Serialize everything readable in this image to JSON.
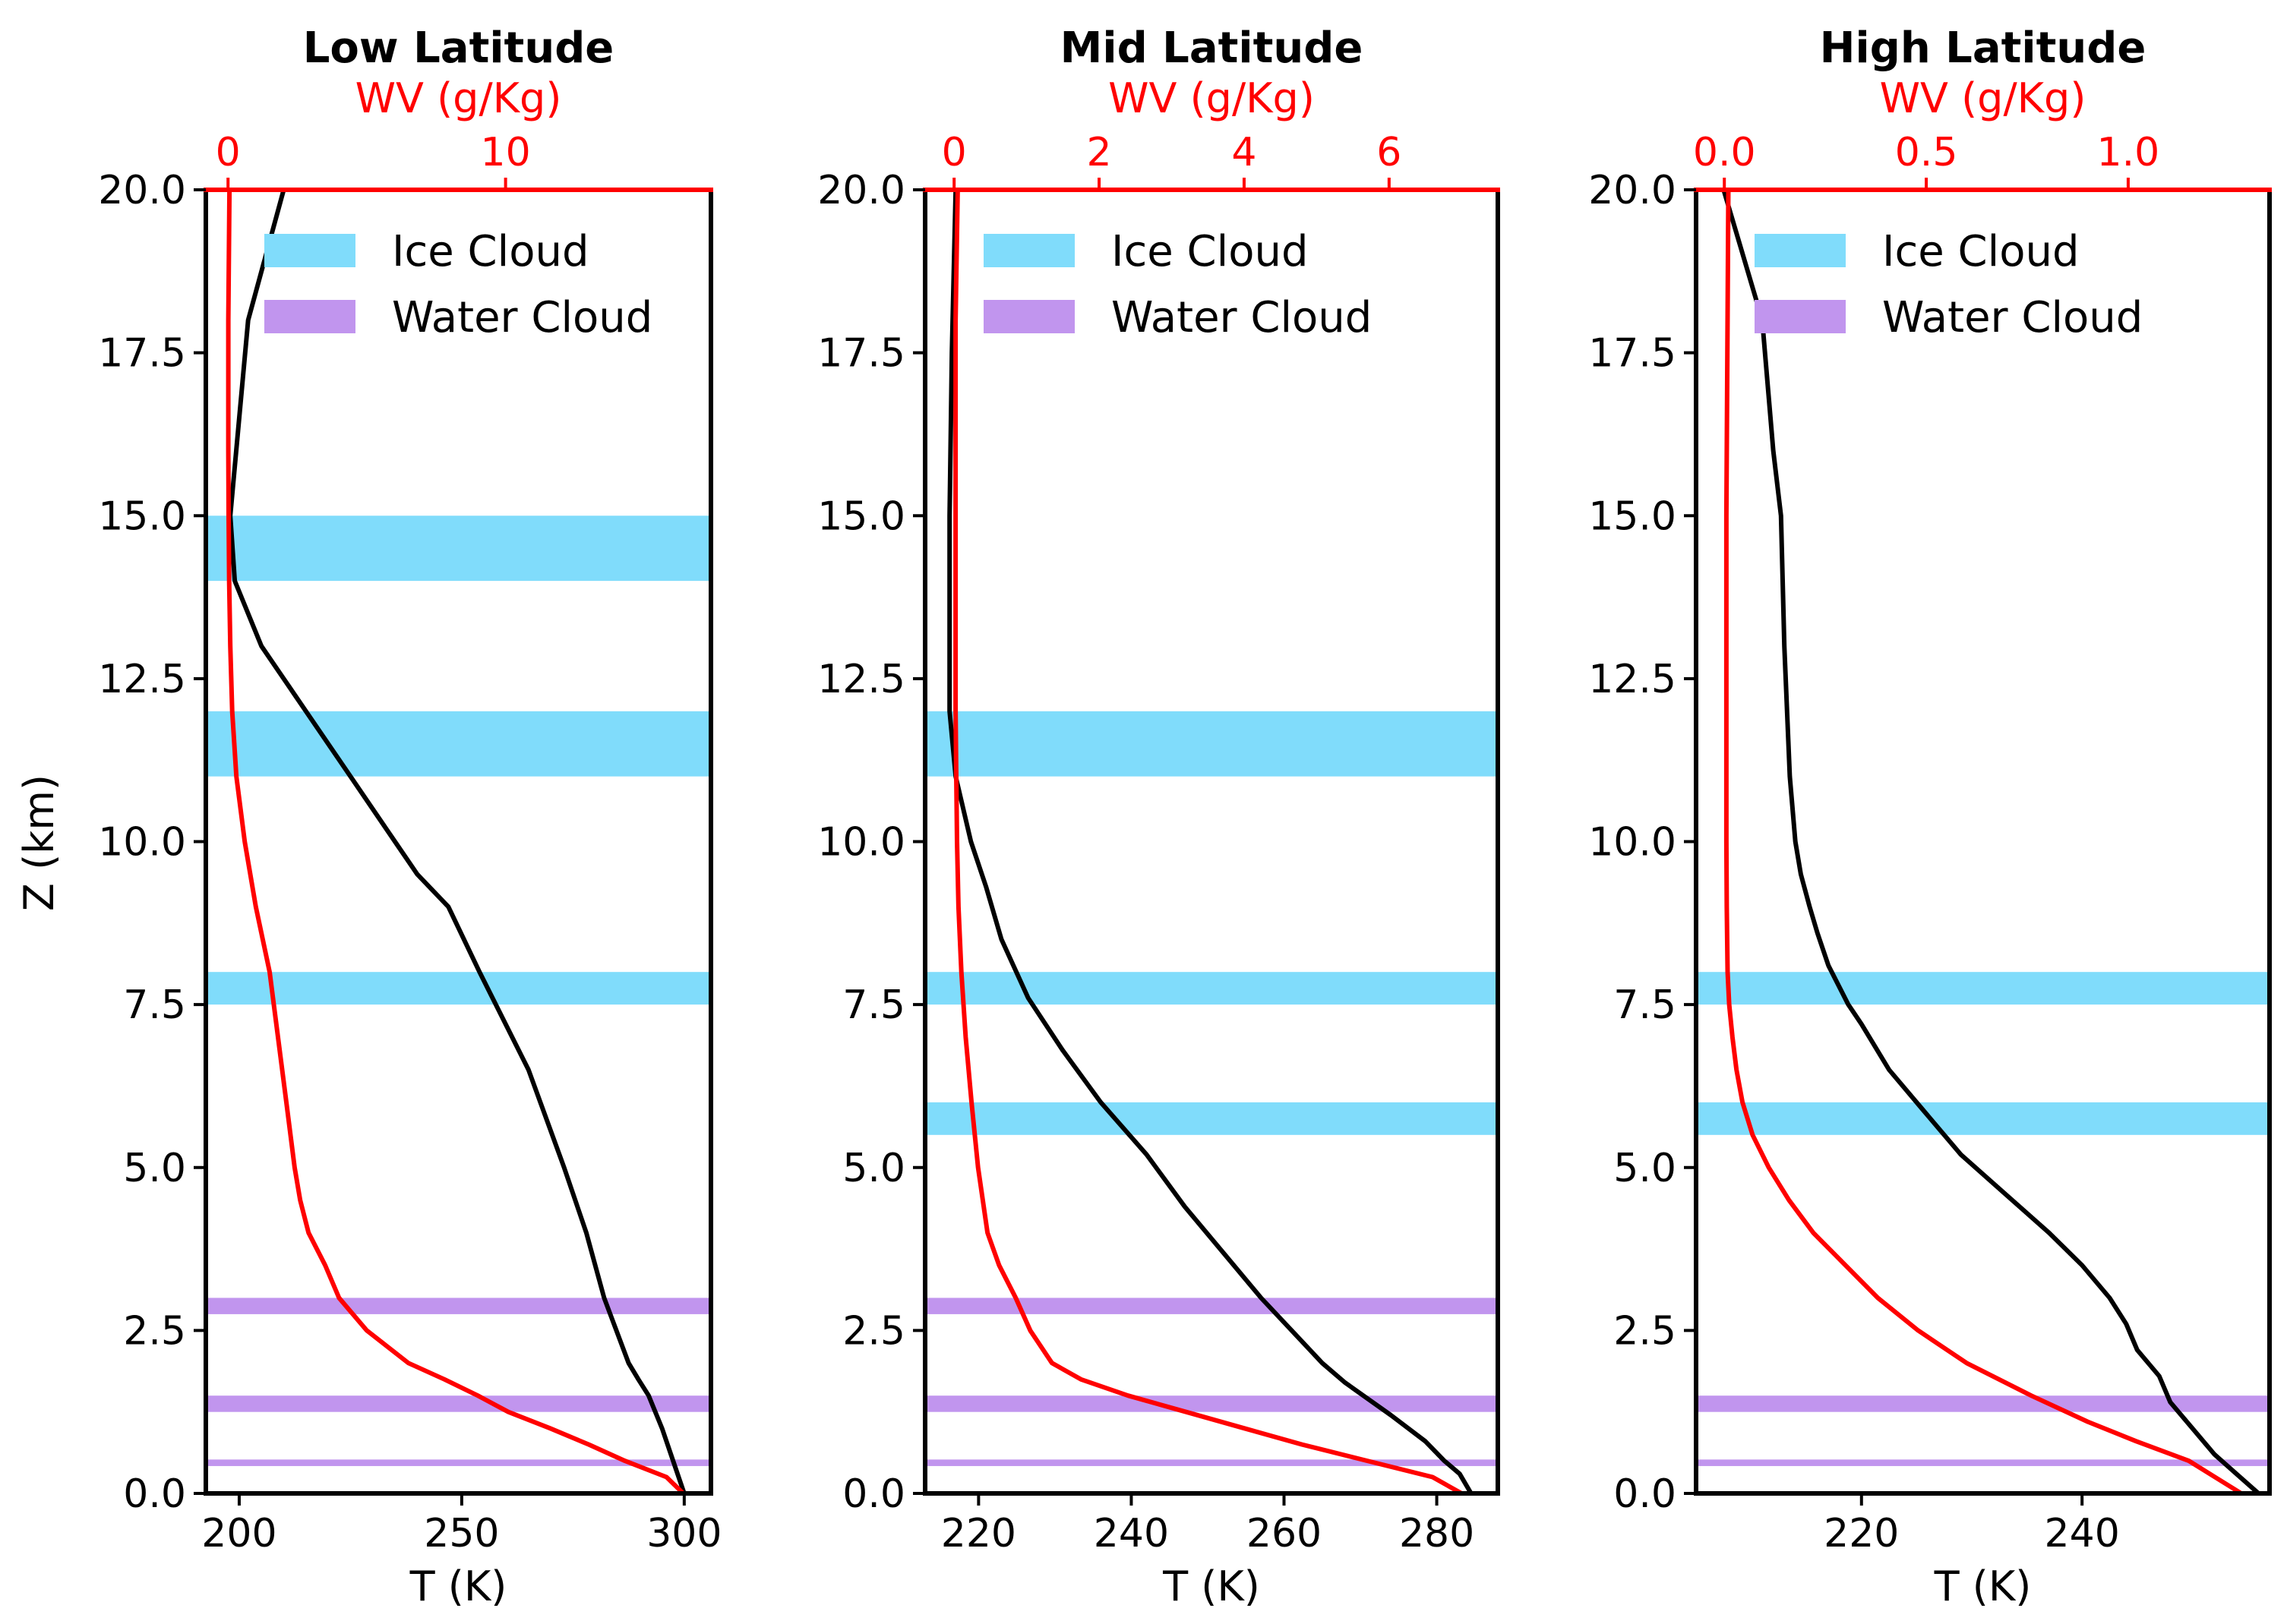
{
  "chart_data": [
    {
      "type": "line",
      "title": "Low Latitude",
      "xlabel": "T (K)",
      "x2label": "WV (g/Kg)",
      "ylabel": "Z (km)",
      "xlim": [
        192.5,
        306
      ],
      "x2lim": [
        -0.8,
        17.4
      ],
      "ylim": [
        0,
        20
      ],
      "xticks": [
        {
          "v": 200,
          "label": "200"
        },
        {
          "v": 250,
          "label": "250"
        },
        {
          "v": 300,
          "label": "300"
        }
      ],
      "x2ticks": [
        {
          "v": 0,
          "label": "0"
        },
        {
          "v": 10,
          "label": "10"
        }
      ],
      "yticks": [
        {
          "v": 0,
          "label": "0.0"
        },
        {
          "v": 2.5,
          "label": "2.5"
        },
        {
          "v": 5,
          "label": "5.0"
        },
        {
          "v": 7.5,
          "label": "7.5"
        },
        {
          "v": 10,
          "label": "10.0"
        },
        {
          "v": 12.5,
          "label": "12.5"
        },
        {
          "v": 15,
          "label": "15.0"
        },
        {
          "v": 17.5,
          "label": "17.5"
        },
        {
          "v": 20,
          "label": "20.0"
        }
      ],
      "series": [
        {
          "name": "Temperature",
          "axis": "T",
          "color": "#000000",
          "x": [
            300,
            297.5,
            295,
            292,
            289.7,
            287.5,
            282,
            278,
            273,
            265,
            254,
            247,
            240,
            235,
            225,
            215,
            205,
            199,
            198,
            202,
            210
          ],
          "y": [
            0,
            0.5,
            1,
            1.5,
            1.75,
            2,
            3,
            4,
            5,
            6.5,
            8,
            9,
            9.5,
            10,
            11,
            12,
            13,
            14,
            15,
            18,
            20
          ]
        },
        {
          "name": "WV",
          "axis": "WV",
          "color": "#ff0000",
          "x": [
            16.4,
            15.8,
            14.3,
            13,
            11.6,
            10.1,
            9,
            7.8,
            6.5,
            5,
            4,
            3.5,
            2.9,
            2.6,
            2.4,
            2.1,
            1.8,
            1.5,
            1.0,
            0.6,
            0.3,
            0.15,
            0.08,
            0.04,
            0.02,
            0.01,
            0.01,
            0.05
          ],
          "y": [
            0,
            0.25,
            0.5,
            0.75,
            1,
            1.25,
            1.5,
            1.75,
            2,
            2.5,
            3,
            3.5,
            4,
            4.5,
            5,
            6,
            7,
            8,
            9,
            10,
            11,
            12,
            13,
            14,
            15,
            16,
            18,
            20
          ]
        }
      ],
      "bands": [
        {
          "type": "Ice Cloud",
          "z0": 14,
          "z1": 15
        },
        {
          "type": "Ice Cloud",
          "z0": 11,
          "z1": 12
        },
        {
          "type": "Ice Cloud",
          "z0": 7.5,
          "z1": 8
        },
        {
          "type": "Water Cloud",
          "z0": 2.75,
          "z1": 3
        },
        {
          "type": "Water Cloud",
          "z0": 1.25,
          "z1": 1.5
        },
        {
          "type": "Water Cloud",
          "z0": 0.42,
          "z1": 0.52
        }
      ]
    },
    {
      "type": "line",
      "title": "Mid Latitude",
      "xlabel": "T (K)",
      "x2label": "WV (g/Kg)",
      "ylabel": "",
      "xlim": [
        213,
        288
      ],
      "x2lim": [
        -0.4,
        7.5
      ],
      "ylim": [
        0,
        20
      ],
      "xticks": [
        {
          "v": 220,
          "label": "220"
        },
        {
          "v": 240,
          "label": "240"
        },
        {
          "v": 260,
          "label": "260"
        },
        {
          "v": 280,
          "label": "280"
        }
      ],
      "x2ticks": [
        {
          "v": 0,
          "label": "0"
        },
        {
          "v": 2,
          "label": "2"
        },
        {
          "v": 4,
          "label": "4"
        },
        {
          "v": 6,
          "label": "6"
        }
      ],
      "yticks": [
        {
          "v": 0,
          "label": "0.0"
        },
        {
          "v": 2.5,
          "label": "2.5"
        },
        {
          "v": 5,
          "label": "5.0"
        },
        {
          "v": 7.5,
          "label": "7.5"
        },
        {
          "v": 10,
          "label": "10.0"
        },
        {
          "v": 12.5,
          "label": "12.5"
        },
        {
          "v": 15,
          "label": "15.0"
        },
        {
          "v": 17.5,
          "label": "17.5"
        },
        {
          "v": 20,
          "label": "20.0"
        }
      ],
      "series": [
        {
          "name": "Temperature",
          "axis": "T",
          "color": "#000000",
          "x": [
            284.5,
            283,
            281,
            278.5,
            274,
            268,
            265,
            261,
            257,
            252,
            247,
            242,
            236,
            231,
            226.5,
            223,
            221,
            219,
            217,
            216.2,
            216.2,
            216.5,
            217
          ],
          "y": [
            0,
            0.3,
            0.5,
            0.8,
            1.2,
            1.7,
            2,
            2.5,
            3,
            3.7,
            4.4,
            5.2,
            6,
            6.8,
            7.6,
            8.5,
            9.3,
            10,
            11,
            12,
            15,
            17.5,
            20
          ]
        },
        {
          "name": "WV",
          "axis": "WV",
          "color": "#ff0000",
          "x": [
            7.0,
            6.6,
            5.7,
            4.8,
            4.0,
            3.2,
            2.4,
            1.75,
            1.35,
            1.05,
            0.85,
            0.62,
            0.46,
            0.33,
            0.24,
            0.16,
            0.1,
            0.06,
            0.04,
            0.03,
            0.02,
            0.02,
            0.02,
            0.05
          ],
          "y": [
            0,
            0.25,
            0.5,
            0.75,
            1,
            1.25,
            1.5,
            1.75,
            2,
            2.5,
            3,
            3.5,
            4,
            5,
            6,
            7,
            8,
            9,
            10,
            11,
            12,
            14,
            18,
            20
          ]
        }
      ],
      "bands": [
        {
          "type": "Ice Cloud",
          "z0": 11,
          "z1": 12
        },
        {
          "type": "Ice Cloud",
          "z0": 7.5,
          "z1": 8
        },
        {
          "type": "Ice Cloud",
          "z0": 5.5,
          "z1": 6
        },
        {
          "type": "Water Cloud",
          "z0": 2.75,
          "z1": 3
        },
        {
          "type": "Water Cloud",
          "z0": 1.25,
          "z1": 1.5
        },
        {
          "type": "Water Cloud",
          "z0": 0.42,
          "z1": 0.52
        }
      ]
    },
    {
      "type": "line",
      "title": "High Latitude",
      "xlabel": "T (K)",
      "x2label": "WV (g/Kg)",
      "ylabel": "",
      "xlim": [
        205,
        257
      ],
      "x2lim": [
        -0.07,
        1.35
      ],
      "ylim": [
        0,
        20
      ],
      "xticks": [
        {
          "v": 220,
          "label": "220"
        },
        {
          "v": 240,
          "label": "240"
        }
      ],
      "x2ticks": [
        {
          "v": 0,
          "label": "0.0"
        },
        {
          "v": 0.5,
          "label": "0.5"
        },
        {
          "v": 1.0,
          "label": "1.0"
        }
      ],
      "yticks": [
        {
          "v": 0,
          "label": "0.0"
        },
        {
          "v": 2.5,
          "label": "2.5"
        },
        {
          "v": 5,
          "label": "5.0"
        },
        {
          "v": 7.5,
          "label": "7.5"
        },
        {
          "v": 10,
          "label": "10.0"
        },
        {
          "v": 12.5,
          "label": "12.5"
        },
        {
          "v": 15,
          "label": "15.0"
        },
        {
          "v": 17.5,
          "label": "17.5"
        },
        {
          "v": 20,
          "label": "20.0"
        }
      ],
      "series": [
        {
          "name": "Temperature",
          "axis": "T",
          "color": "#000000",
          "x": [
            256,
            254,
            252,
            250,
            248,
            247,
            245,
            244,
            242.5,
            240,
            237,
            233,
            229,
            225.5,
            222.5,
            220,
            218.8,
            217,
            216,
            215.3,
            214.5,
            214,
            213.5,
            213,
            212.7,
            212,
            211,
            207.5
          ],
          "y": [
            0,
            0.3,
            0.6,
            1,
            1.4,
            1.8,
            2.2,
            2.6,
            3,
            3.5,
            4,
            4.6,
            5.2,
            5.9,
            6.5,
            7.2,
            7.5,
            8.1,
            8.6,
            9,
            9.5,
            10,
            11,
            13,
            15,
            16,
            18,
            20
          ]
        },
        {
          "name": "WV",
          "axis": "WV",
          "color": "#ff0000",
          "x": [
            1.28,
            1.15,
            1.02,
            0.9,
            0.76,
            0.6,
            0.48,
            0.38,
            0.3,
            0.22,
            0.16,
            0.11,
            0.07,
            0.045,
            0.03,
            0.02,
            0.012,
            0.008,
            0.006,
            0.005,
            0.005,
            0.005,
            0.01
          ],
          "y": [
            0,
            0.5,
            0.8,
            1.1,
            1.5,
            2,
            2.5,
            3,
            3.5,
            4,
            4.5,
            5,
            5.5,
            6,
            6.5,
            7,
            7.5,
            8,
            9,
            10,
            12,
            15,
            20
          ]
        }
      ],
      "bands": [
        {
          "type": "Ice Cloud",
          "z0": 7.5,
          "z1": 8
        },
        {
          "type": "Ice Cloud",
          "z0": 5.5,
          "z1": 6
        },
        {
          "type": "Water Cloud",
          "z0": 1.25,
          "z1": 1.5
        },
        {
          "type": "Water Cloud",
          "z0": 0.42,
          "z1": 0.52
        }
      ]
    }
  ],
  "legend": {
    "entries": [
      {
        "key": "ice",
        "label": "Ice Cloud",
        "color": "#80dcfb"
      },
      {
        "key": "water",
        "label": "Water Cloud",
        "color": "#c195ee"
      }
    ]
  },
  "colors": {
    "ice": "#80dcfb",
    "water": "#c195ee",
    "temperature": "#000000",
    "wv": "#ff0000"
  }
}
